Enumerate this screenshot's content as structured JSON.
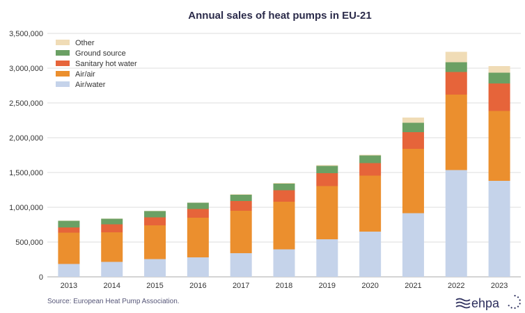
{
  "chart_data": {
    "type": "bar",
    "stacked": true,
    "title": "Annual sales of heat pumps in EU-21",
    "xlabel": "",
    "ylabel": "",
    "ylim": [
      0,
      3500000
    ],
    "yticks": [
      "0",
      "500,000",
      "1,000,000",
      "1,500,000",
      "2,000,000",
      "2,500,000",
      "3,000,000",
      "3,500,000"
    ],
    "ytick_values": [
      0,
      500000,
      1000000,
      1500000,
      2000000,
      2500000,
      3000000,
      3500000
    ],
    "grid": true,
    "legend_position": "top-left",
    "categories": [
      "2013",
      "2014",
      "2015",
      "2016",
      "2017",
      "2018",
      "2019",
      "2020",
      "2021",
      "2022",
      "2023"
    ],
    "series": [
      {
        "name": "Air/water",
        "color": "#c5d3ea",
        "values": [
          185000,
          215000,
          255000,
          280000,
          340000,
          395000,
          540000,
          650000,
          915000,
          1535000,
          1380000
        ]
      },
      {
        "name": "Air/air",
        "color": "#eb8f2e",
        "values": [
          450000,
          425000,
          485000,
          570000,
          610000,
          685000,
          765000,
          805000,
          925000,
          1085000,
          1005000
        ]
      },
      {
        "name": "Sanitary hot water",
        "color": "#e6643a",
        "values": [
          75000,
          115000,
          115000,
          125000,
          140000,
          165000,
          185000,
          180000,
          240000,
          325000,
          395000
        ]
      },
      {
        "name": "Ground source",
        "color": "#6ba064",
        "values": [
          95000,
          80000,
          90000,
          90000,
          90000,
          95000,
          105000,
          110000,
          135000,
          140000,
          155000
        ]
      },
      {
        "name": "Other",
        "color": "#f0dcb6",
        "values": [
          3000,
          3000,
          4000,
          3000,
          8000,
          10000,
          12000,
          10000,
          75000,
          150000,
          95000
        ]
      }
    ],
    "legend_order": [
      "Other",
      "Ground source",
      "Sanitary hot water",
      "Air/air",
      "Air/water"
    ]
  },
  "source_text": "Source: European Heat Pump Association.",
  "logo": {
    "text": "ehpa",
    "color": "#2b2d5c"
  }
}
